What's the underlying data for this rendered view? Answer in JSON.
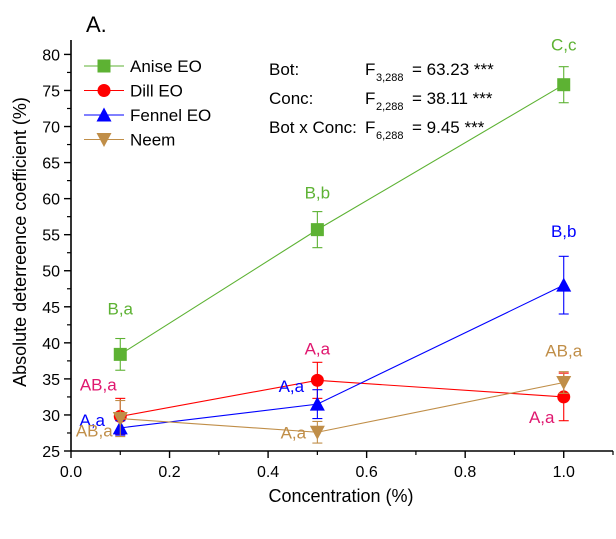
{
  "chart_data": {
    "type": "line",
    "panel_label": "A.",
    "xlabel": "Concentration (%)",
    "ylabel": "Absolute deterreence coefficient (%)",
    "xlim": [
      0,
      1.1
    ],
    "ylim": [
      25,
      82
    ],
    "x_ticks": [
      "0.0",
      "0.2",
      "0.4",
      "0.6",
      "0.8",
      "1.0"
    ],
    "x_tick_values": [
      0,
      0.2,
      0.4,
      0.6,
      0.8,
      1.0
    ],
    "y_ticks": [
      "25",
      "30",
      "35",
      "40",
      "45",
      "50",
      "55",
      "60",
      "65",
      "70",
      "75",
      "80"
    ],
    "y_tick_values": [
      25,
      30,
      35,
      40,
      45,
      50,
      55,
      60,
      65,
      70,
      75,
      80
    ],
    "grid": false,
    "legend_position": "top-left",
    "x": [
      0.1,
      0.5,
      1.0
    ],
    "series": [
      {
        "name": "Anise EO",
        "color": "#5db233",
        "marker": "square",
        "values": [
          38.4,
          55.7,
          75.8
        ],
        "errors": [
          2.2,
          2.5,
          2.5
        ],
        "labels": [
          "B,a",
          "B,b",
          "C,c"
        ],
        "label_color": "#5db233"
      },
      {
        "name": "Dill EO",
        "color": "#ff0000",
        "marker": "circle",
        "values": [
          29.8,
          34.8,
          32.5
        ],
        "errors": [
          2.5,
          2.5,
          3.3
        ],
        "labels": [
          "AB,a",
          "A,a",
          "A,a"
        ],
        "label_color": "#e0176f"
      },
      {
        "name": "Fennel EO",
        "color": "#0000ff",
        "marker": "triangle-up",
        "values": [
          28.2,
          31.5,
          48.0
        ],
        "errors": [
          1.0,
          2.0,
          4.0
        ],
        "labels": [
          "A,a",
          "A,a",
          "B,b"
        ],
        "label_color": "#0000ff"
      },
      {
        "name": "Neem",
        "color": "#c08e48",
        "marker": "triangle-down",
        "values": [
          29.5,
          27.6,
          34.5
        ],
        "errors": [
          2.5,
          1.5,
          1.5
        ],
        "labels": [
          "AB,a",
          "A,a",
          "AB,a"
        ],
        "label_color": "#c08e48"
      }
    ],
    "stats": [
      {
        "label": "Bot:",
        "f": "F",
        "df": "3,288",
        "value": "= 63.23 ***"
      },
      {
        "label": "Conc:",
        "f": "F",
        "df": "2,288",
        "value": "= 38.11 ***"
      },
      {
        "label": "Bot x Conc:",
        "f": "F",
        "df": "6,288",
        "value": "=   9.45 ***"
      }
    ]
  }
}
